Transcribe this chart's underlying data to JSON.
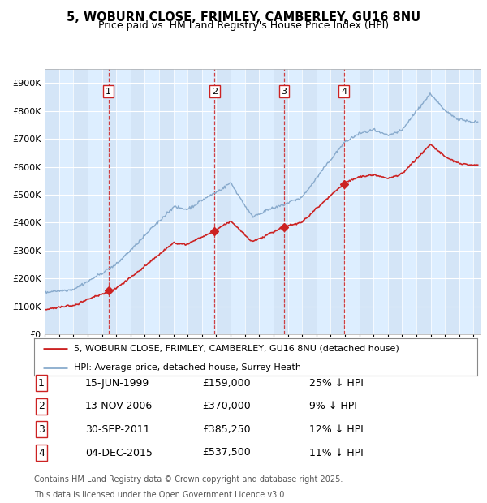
{
  "title1": "5, WOBURN CLOSE, FRIMLEY, CAMBERLEY, GU16 8NU",
  "title2": "Price paid vs. HM Land Registry's House Price Index (HPI)",
  "ylim": [
    0,
    950000
  ],
  "yticks": [
    0,
    100000,
    200000,
    300000,
    400000,
    500000,
    600000,
    700000,
    800000,
    900000
  ],
  "ytick_labels": [
    "£0",
    "£100K",
    "£200K",
    "£300K",
    "£400K",
    "£500K",
    "£600K",
    "£700K",
    "£800K",
    "£900K"
  ],
  "xlim_start": 1995.0,
  "xlim_end": 2025.5,
  "transactions": [
    {
      "num": 1,
      "date": "15-JUN-1999",
      "date_x": 1999.45,
      "price": 159000,
      "price_str": "£159,000",
      "pct": "25% ↓ HPI"
    },
    {
      "num": 2,
      "date": "13-NOV-2006",
      "date_x": 2006.87,
      "price": 370000,
      "price_str": "£370,000",
      "pct": "9% ↓ HPI"
    },
    {
      "num": 3,
      "date": "30-SEP-2011",
      "date_x": 2011.75,
      "price": 385250,
      "price_str": "£385,250",
      "pct": "12% ↓ HPI"
    },
    {
      "num": 4,
      "date": "04-DEC-2015",
      "date_x": 2015.92,
      "price": 537500,
      "price_str": "£537,500",
      "pct": "11% ↓ HPI"
    }
  ],
  "red_line_color": "#cc2222",
  "blue_line_color": "#88aacc",
  "vline_color": "#cc2222",
  "band_color": "#ccddf0",
  "legend_label_red": "5, WOBURN CLOSE, FRIMLEY, CAMBERLEY, GU16 8NU (detached house)",
  "legend_label_blue": "HPI: Average price, detached house, Surrey Heath",
  "footer1": "Contains HM Land Registry data © Crown copyright and database right 2025.",
  "footer2": "This data is licensed under the Open Government Licence v3.0.",
  "plot_bg_color": "#ddeeff"
}
